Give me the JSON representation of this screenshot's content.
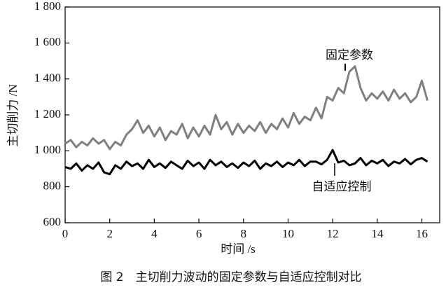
{
  "chart_data": {
    "type": "line",
    "x": [
      0,
      0.25,
      0.5,
      0.75,
      1,
      1.25,
      1.5,
      1.75,
      2,
      2.25,
      2.5,
      2.75,
      3,
      3.25,
      3.5,
      3.75,
      4,
      4.25,
      4.5,
      4.75,
      5,
      5.25,
      5.5,
      5.75,
      6,
      6.25,
      6.5,
      6.75,
      7,
      7.25,
      7.5,
      7.75,
      8,
      8.25,
      8.5,
      8.75,
      9,
      9.25,
      9.5,
      9.75,
      10,
      10.25,
      10.5,
      10.75,
      11,
      11.25,
      11.5,
      11.75,
      12,
      12.25,
      12.5,
      12.75,
      13,
      13.25,
      13.5,
      13.75,
      14,
      14.25,
      14.5,
      14.75,
      15,
      15.25,
      15.5,
      15.75,
      16,
      16.25
    ],
    "series": [
      {
        "name": "固定参数",
        "color": "#808080",
        "values": [
          1040,
          1060,
          1020,
          1050,
          1030,
          1070,
          1040,
          1060,
          1010,
          1050,
          1030,
          1090,
          1120,
          1170,
          1100,
          1140,
          1080,
          1130,
          1060,
          1110,
          1090,
          1150,
          1070,
          1130,
          1080,
          1140,
          1090,
          1200,
          1120,
          1160,
          1090,
          1150,
          1100,
          1140,
          1110,
          1160,
          1100,
          1150,
          1120,
          1180,
          1130,
          1210,
          1150,
          1190,
          1170,
          1240,
          1180,
          1300,
          1280,
          1350,
          1320,
          1440,
          1470,
          1350,
          1280,
          1320,
          1290,
          1330,
          1280,
          1340,
          1290,
          1320,
          1270,
          1300,
          1390,
          1280
        ]
      },
      {
        "name": "自适应控制",
        "color": "#000000",
        "values": [
          910,
          900,
          930,
          890,
          920,
          900,
          935,
          880,
          870,
          920,
          900,
          940,
          915,
          930,
          900,
          950,
          910,
          930,
          905,
          940,
          920,
          900,
          945,
          915,
          935,
          900,
          950,
          920,
          940,
          910,
          930,
          905,
          935,
          915,
          945,
          900,
          930,
          915,
          940,
          910,
          935,
          920,
          950,
          915,
          940,
          940,
          925,
          950,
          1005,
          935,
          945,
          920,
          930,
          960,
          920,
          945,
          930,
          950,
          915,
          940,
          930,
          955,
          925,
          950,
          960,
          940
        ]
      }
    ],
    "xlim": [
      0,
      16.8
    ],
    "xticks": [
      0,
      2,
      4,
      6,
      8,
      10,
      12,
      14,
      16
    ],
    "ylim": [
      600,
      1800
    ],
    "yticks": [
      600,
      800,
      {
        "value": 1000,
        "label": "1 000"
      },
      {
        "value": 1200,
        "label": "1 200"
      },
      {
        "value": 1400,
        "label": "1 400"
      },
      {
        "value": 1600,
        "label": "1 600"
      },
      {
        "value": 1800,
        "label": "1 800"
      }
    ],
    "xlabel": "时间 /s",
    "ylabel": "主切削力 /N",
    "caption": "图 2　主切削力波动的固定参数与自适应控制对比"
  }
}
